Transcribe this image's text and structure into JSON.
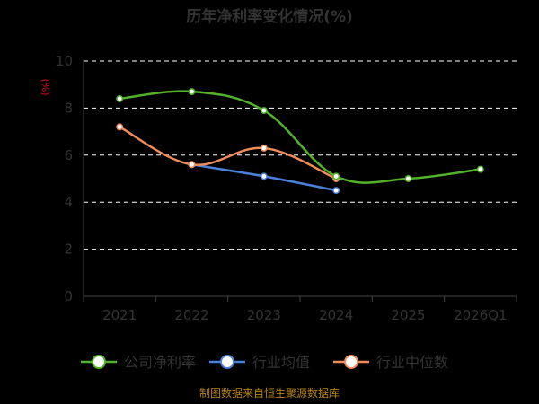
{
  "chart_data": {
    "type": "line",
    "title": "历年净利率变化情况(%)",
    "unit_label": "(%)",
    "categories": [
      "2021",
      "2022",
      "2023",
      "2024",
      "2025",
      "2026Q1"
    ],
    "ylim": [
      0,
      10
    ],
    "yticks": [
      0,
      2,
      4,
      6,
      8,
      10
    ],
    "grid": true,
    "legend_position": "bottom",
    "series": [
      {
        "name": "公司净利率",
        "color": "#52b22a",
        "values": [
          8.4,
          8.7,
          7.9,
          5.1,
          5.0,
          5.4
        ]
      },
      {
        "name": "行业均值",
        "color": "#4a7fdc",
        "values": [
          null,
          5.6,
          5.1,
          4.5,
          null,
          null
        ]
      },
      {
        "name": "行业中位数",
        "color": "#f08c5a",
        "values": [
          7.2,
          5.6,
          6.3,
          5.0,
          null,
          null
        ]
      }
    ],
    "source": "制图数据来自恒生聚源数据库"
  }
}
